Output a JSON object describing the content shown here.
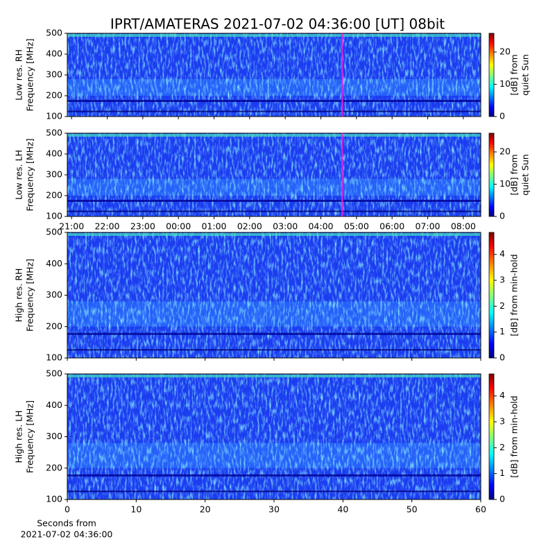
{
  "chart_data": [
    {
      "type": "heatmap",
      "title": "IPRT/AMATERAS 2021-07-02 04:36:00 [UT]   08bit",
      "ylabel": [
        "Low res. RH",
        "Frequency [MHz]"
      ],
      "ylim": [
        100,
        500
      ],
      "yticks": [
        100,
        200,
        300,
        400,
        500
      ],
      "xlim": [
        20.88,
        32.49
      ],
      "xticks": [
        21,
        22,
        23,
        24,
        25,
        26,
        27,
        28,
        29,
        30,
        31,
        32
      ],
      "marker_x": 28.6,
      "marker_color": "#e020e0",
      "cbar_label": [
        "[dB] from",
        "quiet Sun"
      ],
      "clim": [
        0,
        25.8
      ],
      "cticks": [
        0,
        10,
        20
      ]
    },
    {
      "type": "heatmap",
      "ylabel": [
        "Low res. LH",
        "Frequency [MHz]"
      ],
      "ylim": [
        100,
        500
      ],
      "yticks": [
        100,
        200,
        300,
        400,
        500
      ],
      "xlim": [
        20.88,
        32.49
      ],
      "xticks": [
        {
          "value": 21,
          "label": "21:00"
        },
        {
          "value": 22,
          "label": "22:00"
        },
        {
          "value": 23,
          "label": "23:00"
        },
        {
          "value": 24,
          "label": "00:00"
        },
        {
          "value": 25,
          "label": "01:00"
        },
        {
          "value": 26,
          "label": "02:00"
        },
        {
          "value": 27,
          "label": "03:00"
        },
        {
          "value": 28,
          "label": "04:00"
        },
        {
          "value": 29,
          "label": "05:00"
        },
        {
          "value": 30,
          "label": "06:00"
        },
        {
          "value": 31,
          "label": "07:00"
        },
        {
          "value": 32,
          "label": "08:00"
        }
      ],
      "marker_x": 28.6,
      "marker_color": "#e020e0",
      "cbar_label": [
        "[dB] from",
        "quiet Sun"
      ],
      "clim": [
        0,
        25.8
      ],
      "cticks": [
        0,
        10,
        20
      ]
    },
    {
      "type": "heatmap",
      "ylabel": [
        "High res. RH",
        "Frequency [MHz]"
      ],
      "ylim": [
        100,
        500
      ],
      "yticks": [
        100,
        200,
        300,
        400,
        500
      ],
      "xlim": [
        0,
        60
      ],
      "xticks": [
        0,
        10,
        20,
        30,
        40,
        50,
        60
      ],
      "cbar_label": [
        "[dB] from min-hold"
      ],
      "clim": [
        0,
        4.85
      ],
      "cticks": [
        0,
        1,
        2,
        3,
        4
      ]
    },
    {
      "type": "heatmap",
      "ylabel": [
        "High res. LH",
        "Frequency [MHz]"
      ],
      "ylim": [
        100,
        500
      ],
      "yticks": [
        100,
        200,
        300,
        400,
        500
      ],
      "xlim": [
        0,
        60
      ],
      "xticks": [
        0,
        10,
        20,
        30,
        40,
        50,
        60
      ],
      "xlabel": [
        "Seconds from",
        "2021-07-02 04:36:00"
      ],
      "cbar_label": [
        "[dB] from min-hold"
      ],
      "clim": [
        0,
        4.85
      ],
      "cticks": [
        0,
        1,
        2,
        3,
        4
      ]
    }
  ]
}
